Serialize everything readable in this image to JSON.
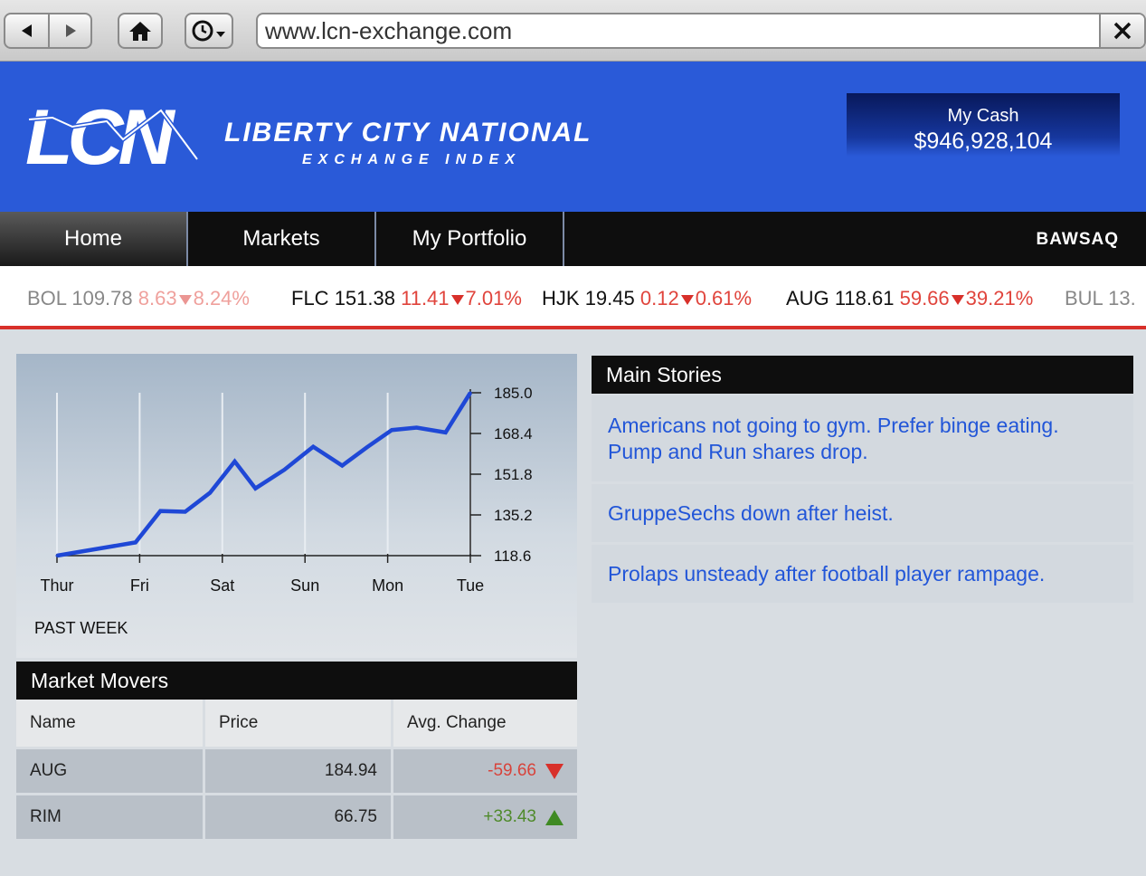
{
  "browser": {
    "url": "www.lcn-exchange.com"
  },
  "header": {
    "logo_text": "LCN",
    "brand_name": "LIBERTY CITY NATIONAL",
    "brand_sub": "EXCHANGE INDEX",
    "cash_label": "My Cash",
    "cash_value": "$946,928,104",
    "accent_color": "#2a5ad8"
  },
  "nav": {
    "items": [
      {
        "label": "Home",
        "active": true
      },
      {
        "label": "Markets",
        "active": false
      },
      {
        "label": "My Portfolio",
        "active": false
      }
    ],
    "partner_logo": "BAWSAQ"
  },
  "ticker": [
    {
      "symbol": "BOL",
      "price": "109.78",
      "change": "8.63",
      "percent": "8.24%"
    },
    {
      "symbol": "FLC",
      "price": "151.38",
      "change": "11.41",
      "percent": "7.01%"
    },
    {
      "symbol": "HJK",
      "price": "19.45",
      "change": "0.12",
      "percent": "0.61%"
    },
    {
      "symbol": "AUG",
      "price": "118.61",
      "change": "59.66",
      "percent": "39.21%"
    },
    {
      "symbol": "BUL",
      "price": "13.",
      "change": "",
      "percent": ""
    }
  ],
  "chart_data": {
    "type": "line",
    "x": [
      "Thur",
      "Fri",
      "Sat",
      "Sun",
      "Mon",
      "Tue"
    ],
    "y_ticks": [
      185.0,
      168.4,
      151.8,
      135.2,
      118.6
    ],
    "ylim": [
      118.6,
      185.0
    ],
    "series": [
      {
        "x": [
          0,
          0.3,
          0.95,
          1.25,
          1.55,
          1.85,
          2.15,
          2.4,
          2.75,
          3.1,
          3.45,
          3.75,
          4.05,
          4.35,
          4.7,
          5.0
        ],
        "values": [
          118.6,
          120.3,
          124.0,
          136.8,
          136.5,
          144.2,
          157.0,
          146.0,
          153.6,
          163.0,
          155.3,
          162.8,
          169.8,
          170.8,
          168.8,
          185.0
        ]
      }
    ],
    "line_color": "#1f48d6",
    "caption": "PAST WEEK"
  },
  "market_movers": {
    "title": "Market Movers",
    "columns": [
      "Name",
      "Price",
      "Avg. Change"
    ],
    "rows": [
      {
        "name": "AUG",
        "price": "184.94",
        "change": "-59.66",
        "direction": "down"
      },
      {
        "name": "RIM",
        "price": "66.75",
        "change": "+33.43",
        "direction": "up"
      }
    ]
  },
  "main_stories": {
    "title": "Main Stories",
    "items": [
      "Americans not going to gym. Prefer binge eating. Pump and Run shares drop.",
      "GruppeSechs down after heist.",
      "Prolaps unsteady after football player rampage."
    ]
  }
}
